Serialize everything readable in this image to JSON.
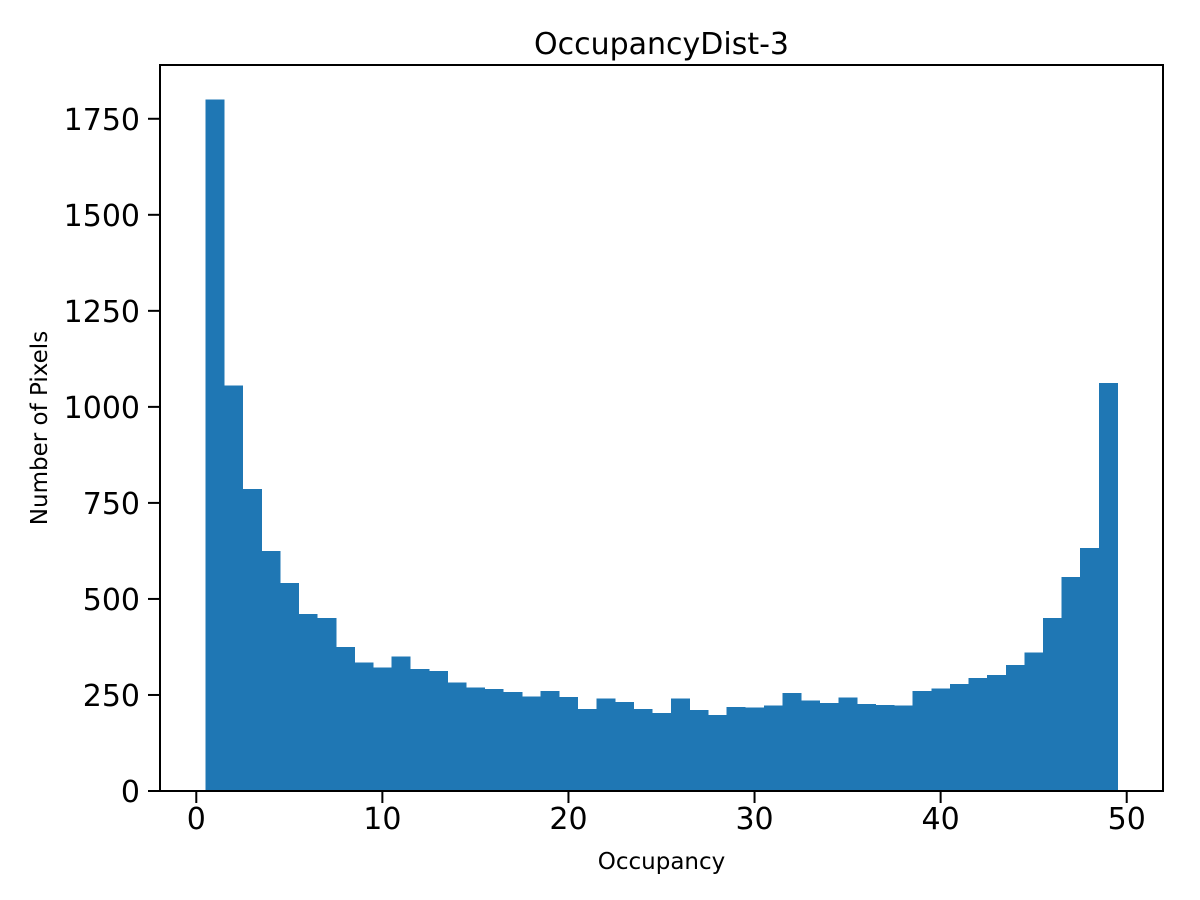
{
  "chart_data": {
    "type": "bar",
    "subtype": "histogram",
    "title": "OccupancyDist-3",
    "xlabel": "Occupancy",
    "ylabel": "Number of Pixels",
    "bar_color": "#1f77b4",
    "background_color": "#ffffff",
    "grid": false,
    "legend": null,
    "bin_width": 1.0,
    "bin_start": 0.5,
    "bin_centers": [
      1,
      2,
      3,
      4,
      5,
      6,
      7,
      8,
      9,
      10,
      11,
      12,
      13,
      14,
      15,
      16,
      17,
      18,
      19,
      20,
      21,
      22,
      23,
      24,
      25,
      26,
      27,
      28,
      29,
      30,
      31,
      32,
      33,
      34,
      35,
      36,
      37,
      38,
      39,
      40,
      41,
      42,
      43,
      44,
      45,
      46,
      47,
      48,
      49
    ],
    "values": [
      1800,
      1055,
      786,
      625,
      541,
      461,
      450,
      375,
      334,
      322,
      350,
      318,
      313,
      283,
      270,
      265,
      258,
      246,
      260,
      245,
      213,
      241,
      232,
      214,
      203,
      241,
      211,
      198,
      219,
      217,
      223,
      255,
      235,
      229,
      244,
      227,
      224,
      222,
      260,
      267,
      278,
      294,
      302,
      328,
      360,
      450,
      557,
      633,
      1062
    ],
    "xlim": [
      -1.95,
      51.95
    ],
    "ylim": [
      0,
      1890
    ],
    "xticks": [
      0,
      10,
      20,
      30,
      40,
      50
    ],
    "yticks": [
      0,
      250,
      500,
      750,
      1000,
      1250,
      1500,
      1750
    ]
  }
}
